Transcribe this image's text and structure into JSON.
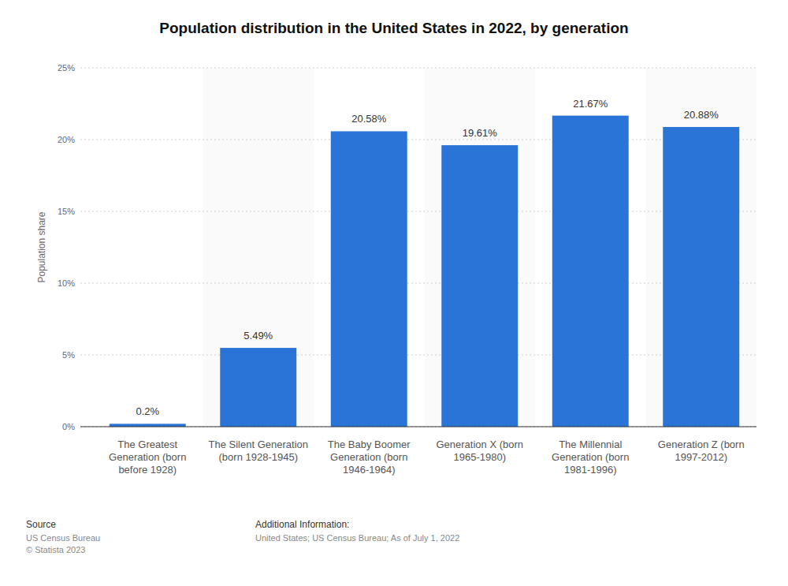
{
  "chart_data": {
    "type": "bar",
    "title": "Population distribution in the United States in 2022, by generation",
    "y_label": "Population share",
    "categories": [
      "The Greatest Generation (born before 1928)",
      "The Silent Generation (born 1928-1945)",
      "The Baby Boomer Generation (born 1946-1964)",
      "Generation X (born 1965-1980)",
      "The Millennial Generation (born 1981-1996)",
      "Generation Z (born 1997-2012)"
    ],
    "values": [
      0.2,
      5.49,
      20.58,
      19.61,
      21.67,
      20.88
    ],
    "value_labels": [
      "0.2%",
      "5.49%",
      "20.58%",
      "19.61%",
      "21.67%",
      "20.88%"
    ],
    "color": "#2a74d8",
    "ylim": [
      0,
      25
    ],
    "yticks": [
      {
        "value": 0,
        "label": "0%"
      },
      {
        "value": 5,
        "label": "5%"
      },
      {
        "value": 10,
        "label": "10%"
      },
      {
        "value": 15,
        "label": "15%"
      },
      {
        "value": 20,
        "label": "20%"
      },
      {
        "value": 25,
        "label": "25%"
      }
    ],
    "grid": true,
    "data_labels": true
  },
  "footer": {
    "source_label": "Source",
    "source": [
      "US Census Bureau",
      "© Statista 2023"
    ],
    "info_label": "Additional Information:",
    "info": "United States; US Census Bureau; As of July 1, 2022"
  }
}
